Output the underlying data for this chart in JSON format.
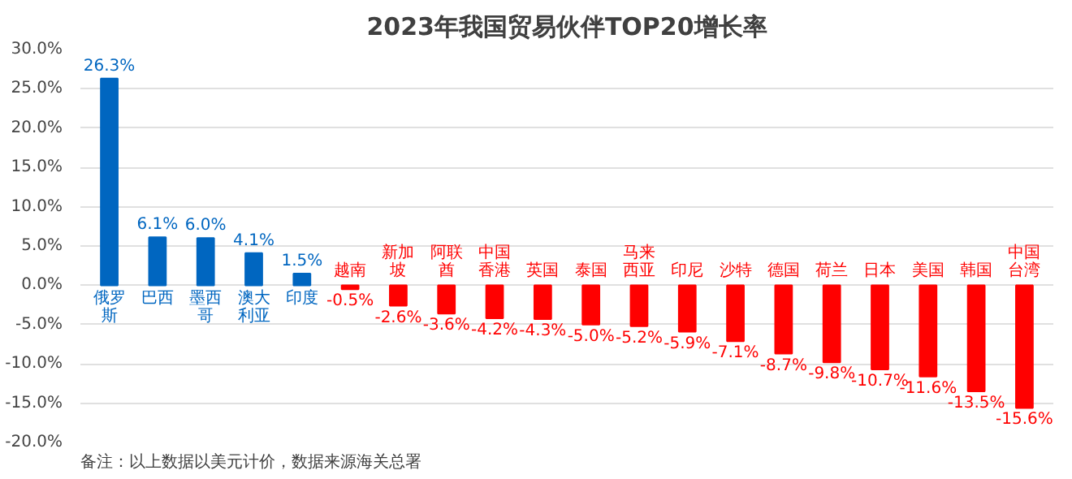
{
  "chart_data": {
    "type": "bar",
    "title": "2023年我国贸易伙伴TOP20增长率",
    "categories": [
      "俄罗斯",
      "巴西",
      "墨西哥",
      "澳大利亚",
      "印度",
      "越南",
      "新加坡",
      "阿联酋",
      "中国香港",
      "英国",
      "泰国",
      "马来西亚",
      "印尼",
      "沙特",
      "德国",
      "荷兰",
      "日本",
      "美国",
      "韩国",
      "中国台湾"
    ],
    "values": [
      26.3,
      6.1,
      6.0,
      4.1,
      1.5,
      -0.5,
      -2.6,
      -3.6,
      -4.2,
      -4.3,
      -5.0,
      -5.2,
      -5.9,
      -7.1,
      -8.7,
      -9.8,
      -10.7,
      -11.6,
      -13.5,
      -15.6
    ],
    "colors": [
      "#0066c0",
      "#0066c0",
      "#0066c0",
      "#0066c0",
      "#0066c0",
      "#ff0000",
      "#ff0000",
      "#ff0000",
      "#ff0000",
      "#ff0000",
      "#ff0000",
      "#ff0000",
      "#ff0000",
      "#ff0000",
      "#ff0000",
      "#ff0000",
      "#ff0000",
      "#ff0000",
      "#ff0000",
      "#ff0000"
    ],
    "value_labels": [
      "26.3%",
      "6.1%",
      "6.0%",
      "4.1%",
      "1.5%",
      "-0.5%",
      "-2.6%",
      "-3.6%",
      "-4.2%",
      "-4.3%",
      "-5.0%",
      "-5.2%",
      "-5.9%",
      "-7.1%",
      "-8.7%",
      "-9.8%",
      "-10.7%",
      "-11.6%",
      "-13.5%",
      "-15.6%"
    ],
    "ylim": [
      -20,
      30
    ],
    "yticks": [
      {
        "value": -20,
        "label": "-20.0%"
      },
      {
        "value": -15,
        "label": "-15.0%"
      },
      {
        "value": -10,
        "label": "-10.0%"
      },
      {
        "value": -5,
        "label": "-5.0%"
      },
      {
        "value": 0,
        "label": "0.0%"
      },
      {
        "value": 5,
        "label": "5.0%"
      },
      {
        "value": 10,
        "label": "10.0%"
      },
      {
        "value": 15,
        "label": "15.0%"
      },
      {
        "value": 20,
        "label": "20.0%"
      },
      {
        "value": 25,
        "label": "25.0%"
      },
      {
        "value": 30,
        "label": "30.0%"
      }
    ],
    "grid": "y",
    "annotations": [
      "备注：以上数据以美元计价，数据来源海关总署"
    ]
  }
}
